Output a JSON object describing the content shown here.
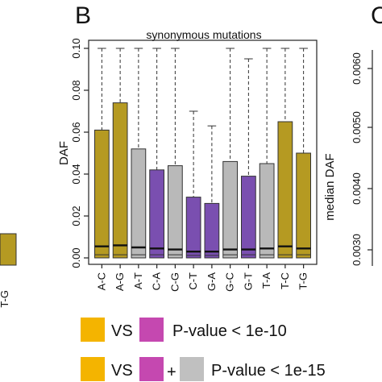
{
  "panel_a": {
    "category": "T-G"
  },
  "panel_b": {
    "letter": "B"
  },
  "panel_c": {
    "letter": "C",
    "ylabel": "median DAF",
    "ticks": [
      "0.0030",
      "0.0040",
      "0.0050",
      "0.0060"
    ]
  },
  "colors": {
    "ref": "#b59a22",
    "purple": "#7a4fb0",
    "gray": "#b9b9b9",
    "legend_gold": "#f4b400",
    "legend_magenta": "#c548b0",
    "legend_gray": "#c0c0c0"
  },
  "legend": {
    "row1": {
      "vs": "VS",
      "text": "P-value < 1e-10"
    },
    "row2": {
      "vs": "VS",
      "plus": "+",
      "text": "P-value < 1e-15"
    }
  },
  "chart_data": {
    "type": "bar",
    "title": "synonymous mutations",
    "ylabel": "DAF",
    "xlabel": "",
    "ylim": [
      0,
      0.1
    ],
    "yticks": [
      "0.00",
      "0.02",
      "0.04",
      "0.06",
      "0.08",
      "0.10"
    ],
    "categories": [
      "A-C",
      "A-G",
      "A-T",
      "C-A",
      "C-G",
      "C-T",
      "G-A",
      "G-C",
      "G-T",
      "T-A",
      "T-C",
      "T-G"
    ],
    "series": [
      {
        "values": [
          0.061,
          0.074,
          0.052,
          0.042,
          0.044,
          0.029,
          0.026,
          0.046,
          0.039,
          0.045,
          0.065,
          0.05
        ],
        "whisker": [
          0.1,
          0.1,
          0.1,
          0.1,
          0.1,
          0.07,
          0.063,
          0.1,
          0.095,
          0.1,
          0.1,
          0.1
        ],
        "median": [
          0.0055,
          0.006,
          0.005,
          0.0045,
          0.004,
          0.003,
          0.003,
          0.004,
          0.004,
          0.0045,
          0.0055,
          0.0045
        ],
        "q1": [
          0.0015,
          0.0015,
          0.0015,
          0.0015,
          0.0015,
          0.0012,
          0.0012,
          0.0015,
          0.0015,
          0.0015,
          0.0015,
          0.0015
        ],
        "groups": [
          "ref",
          "ref",
          "gray",
          "purple",
          "gray",
          "purple",
          "purple",
          "gray",
          "purple",
          "gray",
          "ref",
          "ref"
        ]
      }
    ]
  }
}
